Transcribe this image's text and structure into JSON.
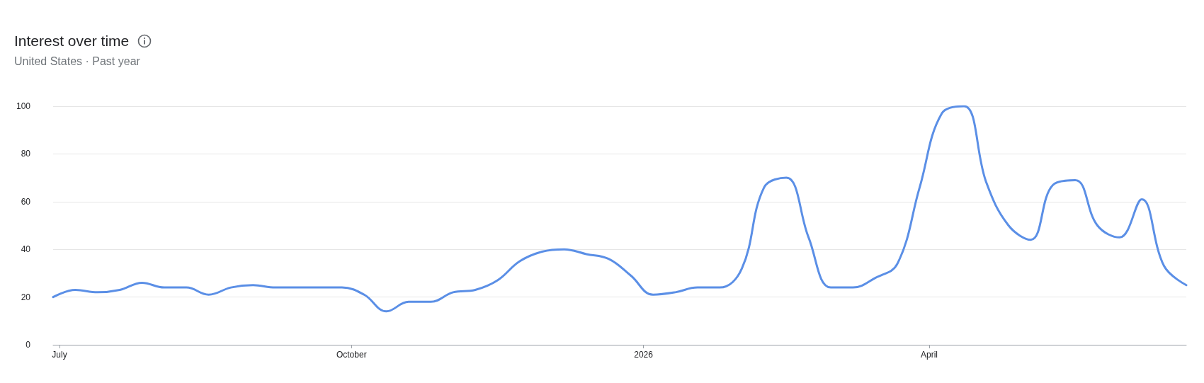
{
  "chart_data": {
    "type": "line",
    "title": "Interest over time",
    "subtitle": "United States · Past year",
    "x": [
      "2025-06-29",
      "2025-07-06",
      "2025-07-13",
      "2025-07-20",
      "2025-07-27",
      "2025-08-03",
      "2025-08-10",
      "2025-08-17",
      "2025-08-24",
      "2025-08-31",
      "2025-09-07",
      "2025-09-14",
      "2025-09-21",
      "2025-09-28",
      "2025-10-05",
      "2025-10-12",
      "2025-10-19",
      "2025-10-26",
      "2025-11-02",
      "2025-11-09",
      "2025-11-16",
      "2025-11-23",
      "2025-11-30",
      "2025-12-07",
      "2025-12-14",
      "2025-12-21",
      "2025-12-28",
      "2026-01-04",
      "2026-01-11",
      "2026-01-18",
      "2026-01-25",
      "2026-02-01",
      "2026-02-08",
      "2026-02-15",
      "2026-02-22",
      "2026-03-01",
      "2026-03-08",
      "2026-03-15",
      "2026-03-22",
      "2026-03-29",
      "2026-04-05",
      "2026-04-12",
      "2026-04-19",
      "2026-04-26",
      "2026-05-03",
      "2026-05-10",
      "2026-05-17",
      "2026-05-24",
      "2026-05-31",
      "2026-06-07",
      "2026-06-14",
      "2026-06-21"
    ],
    "series": [
      {
        "color": "#5b8fe6",
        "values": [
          20,
          23,
          22,
          23,
          26,
          24,
          24,
          21,
          24,
          25,
          24,
          24,
          24,
          24,
          21,
          14,
          18,
          18,
          22,
          23,
          27,
          35,
          39,
          40,
          38,
          36,
          29,
          21,
          22,
          24,
          24,
          32,
          66,
          70,
          45,
          24,
          24,
          28,
          34,
          66,
          97,
          100,
          68,
          50,
          44,
          67,
          69,
          50,
          45,
          61,
          33,
          25
        ]
      }
    ],
    "xlim": [
      "2025-06-29",
      "2026-06-21"
    ],
    "xticks": [
      {
        "value": "2025-07-01",
        "label": "July"
      },
      {
        "value": "2025-10-01",
        "label": "October"
      },
      {
        "value": "2026-01-01",
        "label": "2026"
      },
      {
        "value": "2026-04-01",
        "label": "April"
      }
    ],
    "ylim": [
      0,
      100
    ],
    "yticks": [
      0,
      20,
      40,
      60,
      80,
      100
    ],
    "grid": "y",
    "marker": "none",
    "line_style": "solid"
  }
}
